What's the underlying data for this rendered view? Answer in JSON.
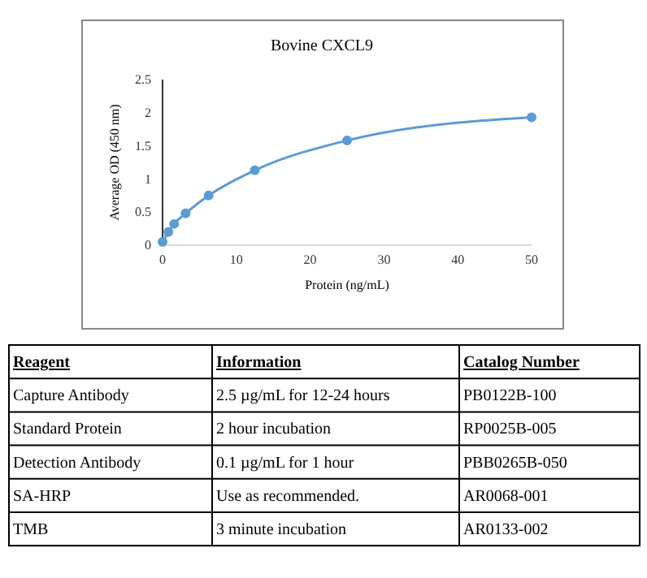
{
  "chart_data": [
    {
      "type": "line",
      "title": "Bovine CXCL9",
      "xlabel": "Protein (ng/mL)",
      "ylabel": "Average OD (450 nm)",
      "x": [
        0,
        0.78,
        1.56,
        3.125,
        6.25,
        12.5,
        25,
        50
      ],
      "series": [
        {
          "color": "#5b9bd5",
          "values": [
            0.05,
            0.2,
            0.32,
            0.48,
            0.75,
            1.13,
            1.58,
            1.93
          ]
        }
      ],
      "xlim": [
        0,
        50
      ],
      "xticks": [
        0,
        10,
        20,
        30,
        40,
        50
      ],
      "ylim": [
        0,
        2.5
      ],
      "yticks": [
        0,
        0.5,
        1,
        1.5,
        2,
        2.5
      ],
      "grid": false,
      "marker": "circle",
      "line_style": "solid"
    },
    {
      "type": "other",
      "annotations": [
        "Reagent",
        "Information",
        "Catalog Number",
        "Capture Antibody",
        "2.5 µg/mL for 12-24 hours",
        "PB0122B-100",
        "Standard Protein",
        "2 hour incubation",
        "RP0025B-005",
        "Detection Antibody",
        "0.1 µg/mL for 1 hour",
        "PBB0265B-050",
        "SA-HRP",
        "Use as recommended.",
        "AR0068-001",
        "TMB",
        "3 minute incubation",
        "AR0133-002"
      ]
    }
  ]
}
